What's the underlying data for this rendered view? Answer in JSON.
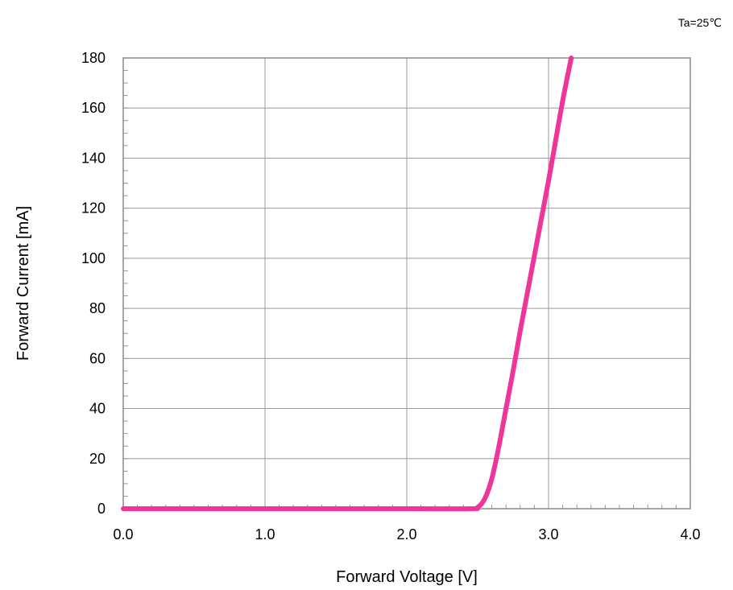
{
  "chart_data": {
    "type": "line",
    "title": "",
    "annotation": "Ta=25℃",
    "xlabel": "Forward Voltage [V]",
    "ylabel": "Forward Current [mA]",
    "xlim": [
      0,
      4
    ],
    "ylim": [
      0,
      180
    ],
    "x_ticks": [
      0,
      1,
      2,
      3,
      4
    ],
    "x_tick_labels": [
      "0.0",
      "1.0",
      "2.0",
      "3.0",
      "4.0"
    ],
    "y_ticks": [
      0,
      20,
      40,
      60,
      80,
      100,
      120,
      140,
      160,
      180
    ],
    "y_tick_labels": [
      "0",
      "20",
      "40",
      "60",
      "80",
      "100",
      "120",
      "140",
      "160",
      "180"
    ],
    "grid": true,
    "legend": "none",
    "series": [
      {
        "color": "#f0359a",
        "x": [
          0.0,
          2.0,
          2.45,
          2.5,
          2.55,
          2.6,
          2.65,
          2.7,
          2.75,
          2.8,
          2.85,
          2.9,
          2.95,
          3.0,
          3.05,
          3.1,
          3.16
        ],
        "y": [
          0,
          0,
          0,
          0.5,
          4,
          12,
          25,
          40,
          55,
          71,
          86,
          101,
          116,
          131,
          147,
          163,
          180
        ]
      }
    ]
  }
}
